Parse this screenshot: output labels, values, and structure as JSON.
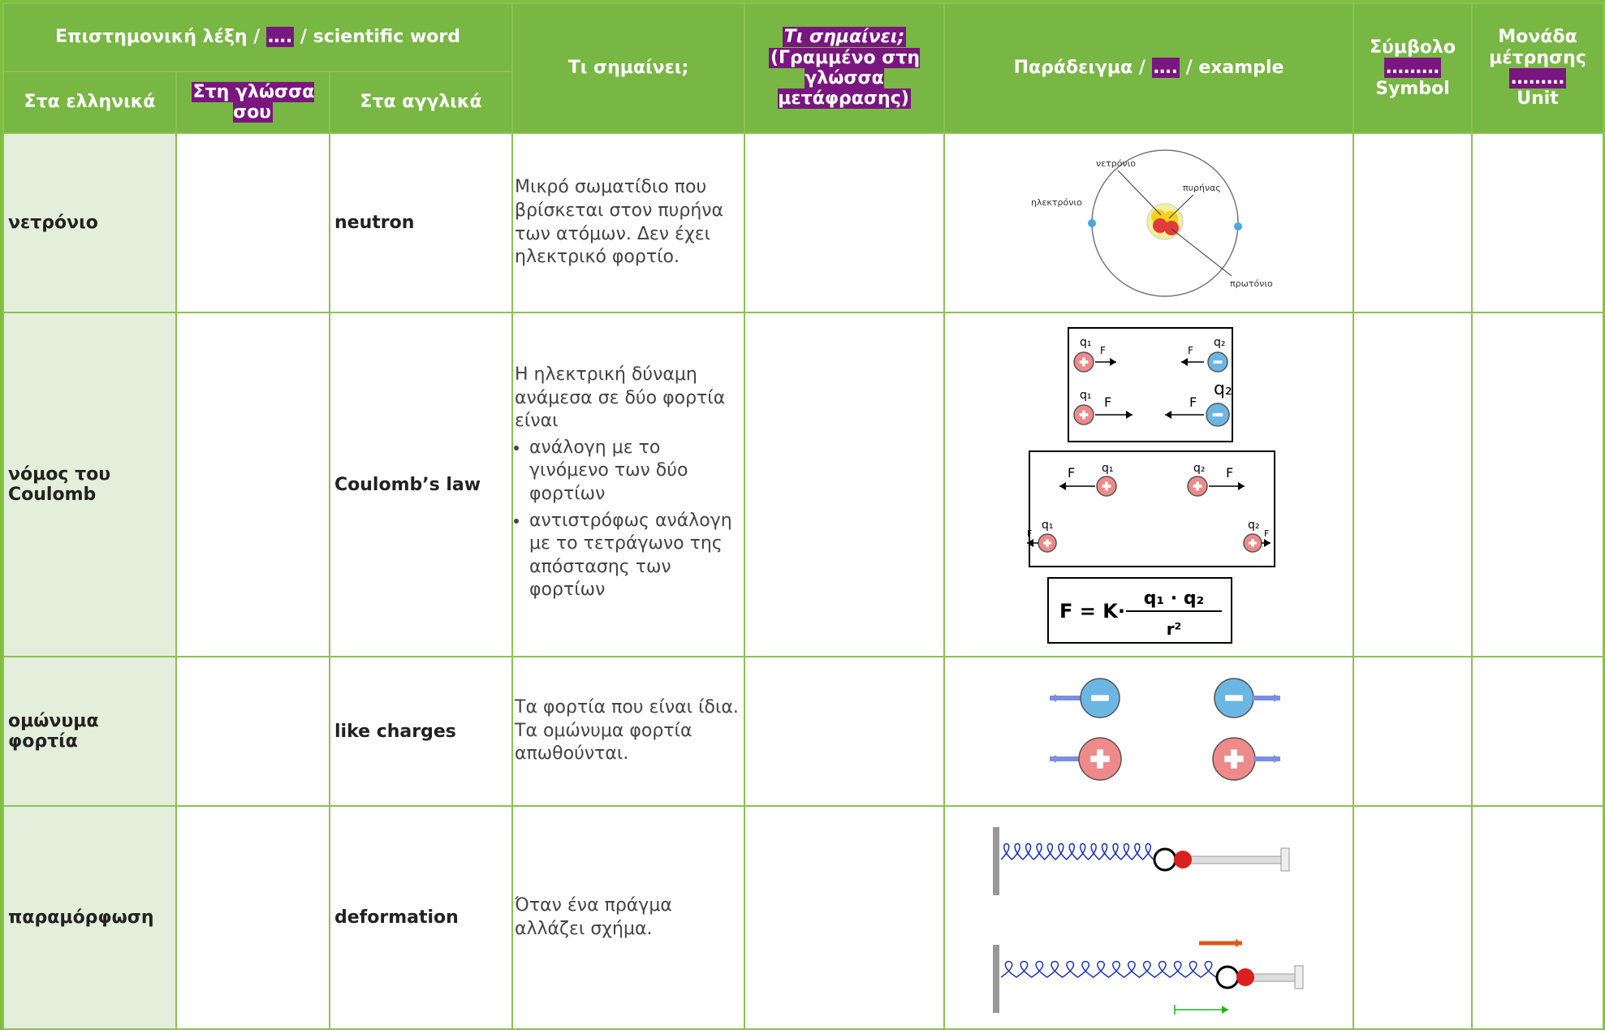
{
  "header": {
    "group_title": [
      "Επιστημονική λέξη /",
      "….",
      "/ scientific word"
    ],
    "col_greek": "Στα ελληνικά",
    "col_your_language": "Στη γλώσσα σου",
    "col_english": "Στα αγγλικά",
    "meaning": "Τι σημαίνει;",
    "meaning_translated": [
      "Τι σημαίνει;",
      "(Γραμμένο στη γλώσσα μετάφρασης)"
    ],
    "example": [
      "Παράδειγμα /",
      "….",
      "/ example"
    ],
    "symbol": [
      "Σύμβολο",
      "………",
      "Symbol"
    ],
    "unit": [
      "Μονάδα μέτρησης",
      "………",
      "Unit"
    ]
  },
  "rows": [
    {
      "greek": "νετρόνιο",
      "english": "neutron",
      "meaning": "Μικρό σωματίδιο που βρίσκεται στον πυρήνα των ατόμων. Δεν έχει ηλεκτρικό φορτίο.",
      "example_labels": [
        "νετρόνιο",
        "πυρήνας",
        "ηλεκτρόνιο",
        "πρωτόνιο"
      ]
    },
    {
      "greek": "νόμος του Coulomb",
      "english": "Coulomb’s law",
      "meaning": "Η ηλεκτρική δύναμη ανάμεσα σε δύο φορτία είναι",
      "meaning_bullets": [
        "ανάλογη με  το γινόμενο των δύο φορτίων",
        "αντιστρόφως ανάλογη με το τετράγωνο της απόστασης των φορτίων"
      ],
      "example_labels": [
        "q₁",
        "q₂",
        "F"
      ],
      "formula": [
        "F =  K·",
        "q₁ · q₂",
        "r²"
      ]
    },
    {
      "greek": "ομώνυμα φορτία",
      "english": "like charges",
      "meaning": "Τα φορτία που είναι ίδια. Τα ομώνυμα φορτία απωθούνται."
    },
    {
      "greek": "παραμόρφωση",
      "english": "deformation",
      "meaning": "Όταν ένα πράγμα αλλάζει σχήμα."
    }
  ]
}
